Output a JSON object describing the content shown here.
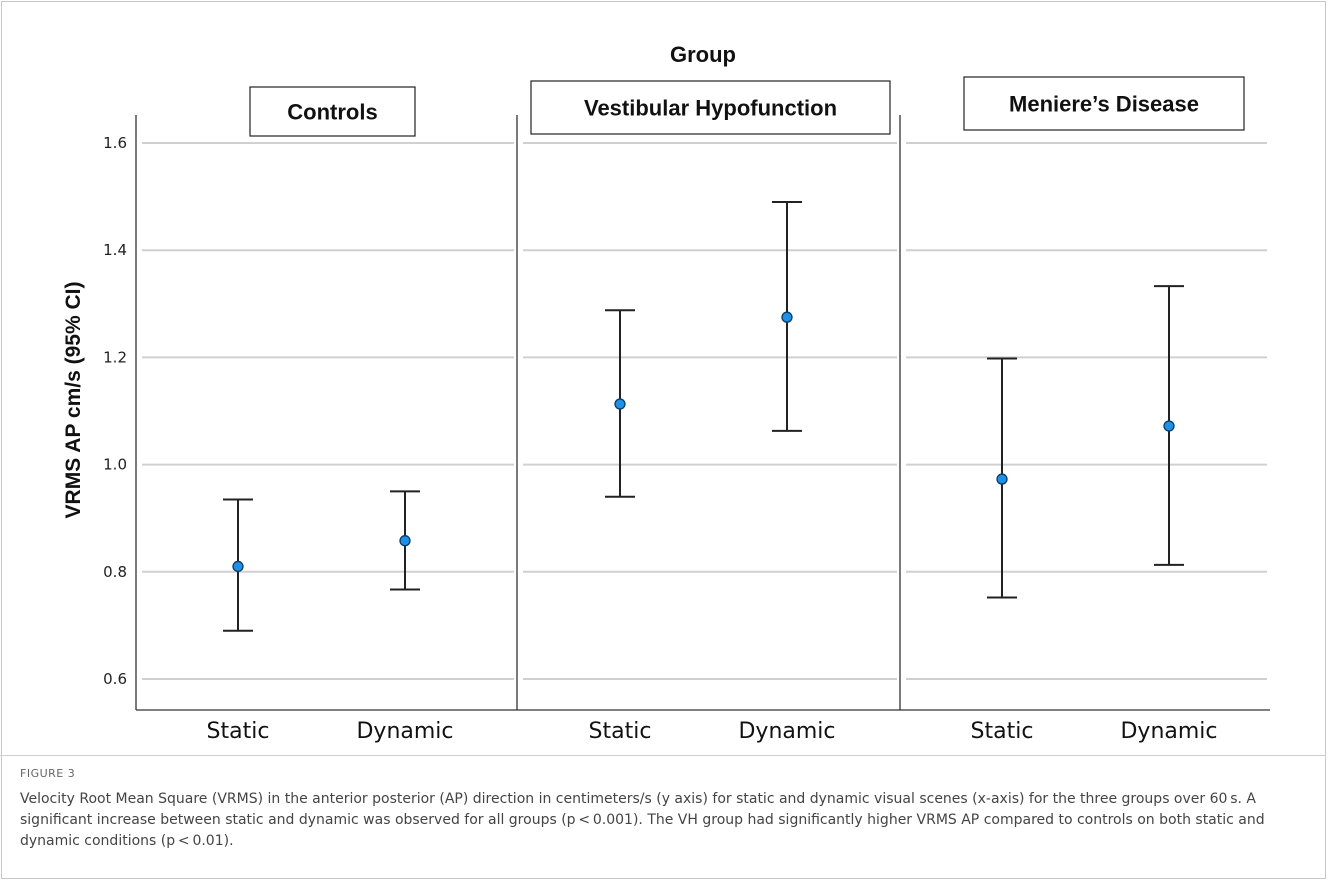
{
  "chart_data": {
    "type": "scatter",
    "subtype": "error-bar-means-with-95ci",
    "group_axis_title": "Group",
    "ylabel": "VRMS AP cm/s (95% CI)",
    "ylim": [
      0.55,
      1.65
    ],
    "yticks": [
      0.6,
      0.8,
      1.0,
      1.2,
      1.4,
      1.6
    ],
    "grid": true,
    "categories": [
      "Static",
      "Dynamic"
    ],
    "panels": [
      {
        "name": "Controls",
        "points": [
          {
            "x": "Static",
            "mean": 0.81,
            "lower": 0.69,
            "upper": 0.935
          },
          {
            "x": "Dynamic",
            "mean": 0.858,
            "lower": 0.767,
            "upper": 0.95
          }
        ]
      },
      {
        "name": "Vestibular Hypofunction",
        "points": [
          {
            "x": "Static",
            "mean": 1.113,
            "lower": 0.94,
            "upper": 1.288
          },
          {
            "x": "Dynamic",
            "mean": 1.275,
            "lower": 1.063,
            "upper": 1.49
          }
        ]
      },
      {
        "name": "Meniere’s Disease",
        "points": [
          {
            "x": "Static",
            "mean": 0.973,
            "lower": 0.752,
            "upper": 1.198
          },
          {
            "x": "Dynamic",
            "mean": 1.072,
            "lower": 0.813,
            "upper": 1.333
          }
        ]
      }
    ],
    "colors": {
      "point": "#1e90e6",
      "errorbar": "#222222",
      "grid": "#d0d0d0"
    }
  },
  "caption": {
    "label": "FIGURE 3",
    "text": "Velocity Root Mean Square (VRMS) in the anterior posterior (AP) direction in centimeters/s (y axis) for static and dynamic visual scenes (x-axis) for the three groups over 60 s. A significant increase between static and dynamic was observed for all groups (p < 0.001). The VH group had significantly higher VRMS AP compared to controls on both static and dynamic conditions (p < 0.01)."
  }
}
